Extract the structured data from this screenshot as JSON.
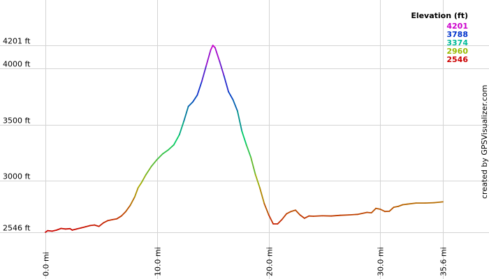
{
  "chart_data": {
    "type": "line",
    "xlabel": "",
    "ylabel": "",
    "xlim": [
      0,
      35.6
    ],
    "ylim": [
      2546,
      4201
    ],
    "grid": true,
    "x_ticks": [
      {
        "value": 0,
        "label": "0.0 mi"
      },
      {
        "value": 10,
        "label": "10.0 mi"
      },
      {
        "value": 20,
        "label": "20.0 mi"
      },
      {
        "value": 30,
        "label": "30.0 mi"
      },
      {
        "value": 35.6,
        "label": "35.6 mi"
      }
    ],
    "y_ticks": [
      {
        "value": 2546,
        "label": "2546 ft"
      },
      {
        "value": 3000,
        "label": "3000 ft"
      },
      {
        "value": 3500,
        "label": "3500 ft"
      },
      {
        "value": 4000,
        "label": "4000 ft"
      },
      {
        "value": 4201,
        "label": "4201 ft"
      }
    ],
    "legend": {
      "title": "Elevation (ft)",
      "placement": "top-right",
      "entries": [
        {
          "label": "4201",
          "color": "#cc00cc"
        },
        {
          "label": "3788",
          "color": "#0033cc"
        },
        {
          "label": "3374",
          "color": "#00bb99"
        },
        {
          "label": "2960",
          "color": "#99bb00"
        },
        {
          "label": "2546",
          "color": "#cc0000"
        }
      ]
    },
    "color_stops": [
      {
        "elev": 2546,
        "color": "#cc0000"
      },
      {
        "elev": 2960,
        "color": "#aaaa00"
      },
      {
        "elev": 3374,
        "color": "#00cc66"
      },
      {
        "elev": 3788,
        "color": "#0033cc"
      },
      {
        "elev": 4201,
        "color": "#cc00cc"
      }
    ],
    "series": [
      {
        "points": [
          [
            0.0,
            2546
          ],
          [
            0.2,
            2560
          ],
          [
            0.6,
            2556
          ],
          [
            1.0,
            2565
          ],
          [
            1.4,
            2580
          ],
          [
            1.8,
            2575
          ],
          [
            2.2,
            2578
          ],
          [
            2.4,
            2565
          ],
          [
            2.8,
            2575
          ],
          [
            3.2,
            2585
          ],
          [
            3.6,
            2595
          ],
          [
            4.0,
            2605
          ],
          [
            4.4,
            2610
          ],
          [
            4.8,
            2598
          ],
          [
            5.2,
            2630
          ],
          [
            5.6,
            2650
          ],
          [
            6.0,
            2658
          ],
          [
            6.4,
            2665
          ],
          [
            6.8,
            2690
          ],
          [
            7.2,
            2730
          ],
          [
            7.6,
            2785
          ],
          [
            8.0,
            2860
          ],
          [
            8.3,
            2940
          ],
          [
            8.6,
            2985
          ],
          [
            9.0,
            3055
          ],
          [
            9.5,
            3130
          ],
          [
            10.0,
            3190
          ],
          [
            10.5,
            3240
          ],
          [
            11.0,
            3275
          ],
          [
            11.5,
            3320
          ],
          [
            12.0,
            3410
          ],
          [
            12.4,
            3530
          ],
          [
            12.8,
            3660
          ],
          [
            13.2,
            3700
          ],
          [
            13.6,
            3760
          ],
          [
            14.0,
            3880
          ],
          [
            14.4,
            4020
          ],
          [
            14.8,
            4160
          ],
          [
            15.0,
            4201
          ],
          [
            15.2,
            4180
          ],
          [
            15.6,
            4060
          ],
          [
            16.0,
            3930
          ],
          [
            16.4,
            3790
          ],
          [
            16.8,
            3720
          ],
          [
            17.2,
            3620
          ],
          [
            17.6,
            3440
          ],
          [
            18.0,
            3320
          ],
          [
            18.4,
            3210
          ],
          [
            18.8,
            3060
          ],
          [
            19.2,
            2940
          ],
          [
            19.6,
            2800
          ],
          [
            20.0,
            2700
          ],
          [
            20.4,
            2620
          ],
          [
            20.8,
            2620
          ],
          [
            21.2,
            2660
          ],
          [
            21.6,
            2710
          ],
          [
            22.0,
            2730
          ],
          [
            22.4,
            2742
          ],
          [
            22.8,
            2700
          ],
          [
            23.2,
            2670
          ],
          [
            23.6,
            2690
          ],
          [
            24.0,
            2688
          ],
          [
            24.8,
            2692
          ],
          [
            25.6,
            2690
          ],
          [
            26.4,
            2696
          ],
          [
            27.2,
            2700
          ],
          [
            28.0,
            2705
          ],
          [
            28.8,
            2722
          ],
          [
            29.2,
            2718
          ],
          [
            29.6,
            2758
          ],
          [
            30.0,
            2750
          ],
          [
            30.4,
            2730
          ],
          [
            30.8,
            2732
          ],
          [
            31.2,
            2768
          ],
          [
            31.6,
            2775
          ],
          [
            32.0,
            2790
          ],
          [
            32.4,
            2795
          ],
          [
            33.2,
            2805
          ],
          [
            34.0,
            2805
          ],
          [
            34.8,
            2808
          ],
          [
            35.6,
            2815
          ]
        ]
      }
    ]
  },
  "watermark": "created by GPSVisualizer.com"
}
